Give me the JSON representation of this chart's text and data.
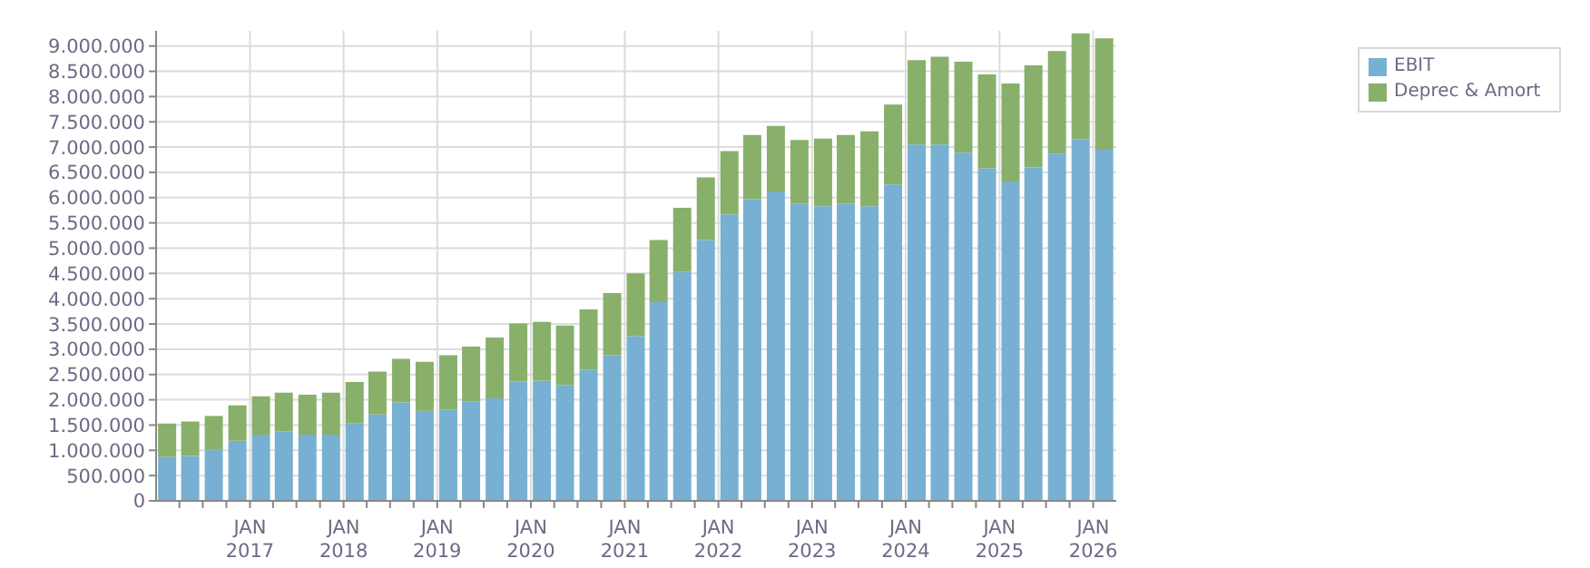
{
  "chart_data": {
    "type": "bar",
    "stacked": true,
    "x": [
      "2016-02-15",
      "2016-05-15",
      "2016-08-15",
      "2016-11-15",
      "2017-02-15",
      "2017-05-15",
      "2017-08-15",
      "2017-11-15",
      "2018-02-15",
      "2018-05-15",
      "2018-08-15",
      "2018-11-15",
      "2019-02-15",
      "2019-05-15",
      "2019-08-15",
      "2019-11-15",
      "2020-02-15",
      "2020-05-15",
      "2020-08-15",
      "2020-11-15",
      "2021-02-15",
      "2021-05-15",
      "2021-08-15",
      "2021-11-15",
      "2022-02-15",
      "2022-05-15",
      "2022-08-15",
      "2022-11-15",
      "2023-02-15",
      "2023-05-15",
      "2023-08-15",
      "2023-11-15",
      "2024-02-15",
      "2024-05-15",
      "2024-08-15",
      "2024-11-15",
      "2025-02-15",
      "2025-05-15",
      "2025-08-15",
      "2025-11-15",
      "2026-02-15"
    ],
    "series": [
      {
        "name": "EBIT",
        "color": "#77b0d2",
        "values": [
          870000,
          890000,
          1010000,
          1190000,
          1310000,
          1380000,
          1310000,
          1310000,
          1530000,
          1710000,
          1950000,
          1780000,
          1810000,
          1960000,
          2030000,
          2360000,
          2380000,
          2290000,
          2590000,
          2880000,
          3260000,
          3930000,
          4530000,
          5160000,
          5670000,
          5970000,
          6120000,
          5880000,
          5830000,
          5880000,
          5830000,
          6260000,
          7050000,
          7050000,
          6890000,
          6580000,
          6320000,
          6600000,
          6870000,
          7160000,
          6950000
        ]
      },
      {
        "name": "Deprec & Amort",
        "color": "#88b06a",
        "values": [
          660000,
          680000,
          670000,
          700000,
          760000,
          760000,
          790000,
          830000,
          820000,
          850000,
          860000,
          970000,
          1070000,
          1090000,
          1200000,
          1150000,
          1160000,
          1180000,
          1200000,
          1230000,
          1240000,
          1230000,
          1270000,
          1240000,
          1250000,
          1270000,
          1300000,
          1260000,
          1340000,
          1360000,
          1480000,
          1580000,
          1670000,
          1740000,
          1800000,
          1860000,
          1940000,
          2020000,
          2030000,
          2090000,
          2200000
        ]
      }
    ],
    "xlim": [
      "2016-01-01",
      "2026-04-01"
    ],
    "xticks": [
      {
        "value": "2016-04-01",
        "label": null
      },
      {
        "value": "2016-07-01",
        "label": null
      },
      {
        "value": "2016-10-01",
        "label": null
      },
      {
        "value": "2017-01-01",
        "label": "JAN\n2017"
      },
      {
        "value": "2017-04-01",
        "label": null
      },
      {
        "value": "2017-07-01",
        "label": null
      },
      {
        "value": "2017-10-01",
        "label": null
      },
      {
        "value": "2018-01-01",
        "label": "JAN\n2018"
      },
      {
        "value": "2018-04-01",
        "label": null
      },
      {
        "value": "2018-07-01",
        "label": null
      },
      {
        "value": "2018-10-01",
        "label": null
      },
      {
        "value": "2019-01-01",
        "label": "JAN\n2019"
      },
      {
        "value": "2019-04-01",
        "label": null
      },
      {
        "value": "2019-07-01",
        "label": null
      },
      {
        "value": "2019-10-01",
        "label": null
      },
      {
        "value": "2020-01-01",
        "label": "JAN\n2020"
      },
      {
        "value": "2020-04-01",
        "label": null
      },
      {
        "value": "2020-07-01",
        "label": null
      },
      {
        "value": "2020-10-01",
        "label": null
      },
      {
        "value": "2021-01-01",
        "label": "JAN\n2021"
      },
      {
        "value": "2021-04-01",
        "label": null
      },
      {
        "value": "2021-07-01",
        "label": null
      },
      {
        "value": "2021-10-01",
        "label": null
      },
      {
        "value": "2022-01-01",
        "label": "JAN\n2022"
      },
      {
        "value": "2022-04-01",
        "label": null
      },
      {
        "value": "2022-07-01",
        "label": null
      },
      {
        "value": "2022-10-01",
        "label": null
      },
      {
        "value": "2023-01-01",
        "label": "JAN\n2023"
      },
      {
        "value": "2023-04-01",
        "label": null
      },
      {
        "value": "2023-07-01",
        "label": null
      },
      {
        "value": "2023-10-01",
        "label": null
      },
      {
        "value": "2024-01-01",
        "label": "JAN\n2024"
      },
      {
        "value": "2024-04-01",
        "label": null
      },
      {
        "value": "2024-07-01",
        "label": null
      },
      {
        "value": "2024-10-01",
        "label": null
      },
      {
        "value": "2025-01-01",
        "label": "JAN\n2025"
      },
      {
        "value": "2025-04-01",
        "label": null
      },
      {
        "value": "2025-07-01",
        "label": null
      },
      {
        "value": "2025-10-01",
        "label": null
      },
      {
        "value": "2026-01-01",
        "label": "JAN\n2026"
      }
    ],
    "ylim": [
      0,
      9300000
    ],
    "yticks": [
      {
        "value": 0,
        "label": "0"
      },
      {
        "value": 500000,
        "label": "500.000"
      },
      {
        "value": 1000000,
        "label": "1.000.000"
      },
      {
        "value": 1500000,
        "label": "1.500.000"
      },
      {
        "value": 2000000,
        "label": "2.000.000"
      },
      {
        "value": 2500000,
        "label": "2.500.000"
      },
      {
        "value": 3000000,
        "label": "3.000.000"
      },
      {
        "value": 3500000,
        "label": "3.500.000"
      },
      {
        "value": 4000000,
        "label": "4.000.000"
      },
      {
        "value": 4500000,
        "label": "4.500.000"
      },
      {
        "value": 5000000,
        "label": "5.000.000"
      },
      {
        "value": 5500000,
        "label": "5.500.000"
      },
      {
        "value": 6000000,
        "label": "6.000.000"
      },
      {
        "value": 6500000,
        "label": "6.500.000"
      },
      {
        "value": 7000000,
        "label": "7.000.000"
      },
      {
        "value": 7500000,
        "label": "7.500.000"
      },
      {
        "value": 8000000,
        "label": "8.000.000"
      },
      {
        "value": 8500000,
        "label": "8.500.000"
      },
      {
        "value": 9000000,
        "label": "9.000.000"
      }
    ],
    "grid": true,
    "legend": "top right"
  }
}
